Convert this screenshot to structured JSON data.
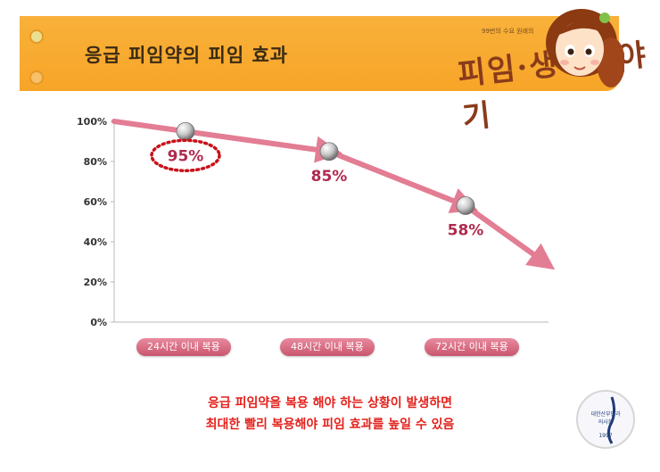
{
  "header": {
    "title": "응급 피임약의 피임 효과",
    "brand": "피임·생리이야기",
    "brand_small": "99번의 수요 원래의"
  },
  "colors": {
    "banner": "#f7a528",
    "arrow": "#e07089",
    "label": "#b0294f",
    "note": "#e4211c"
  },
  "chart_data": {
    "type": "line",
    "categories": [
      "24시간 이내 복용",
      "48시간 이내 복용",
      "72시간 이내 복용"
    ],
    "series": [
      {
        "values": [
          95,
          85,
          58
        ],
        "data_labels": [
          "95%",
          "85%",
          "58%"
        ]
      }
    ],
    "ylim": [
      0,
      100
    ],
    "yticks": [
      "0%",
      "20%",
      "40%",
      "60%",
      "80%",
      "100%"
    ],
    "highlight": "95%",
    "grid": false
  },
  "notes": {
    "line1": "응급 피임약을 복용 해야 하는 상황이 발생하면",
    "line2": "최대한 빨리 복용해야 피임 효과를 높일 수 있음"
  },
  "logo": {
    "line1": "대한산부인과",
    "line2": "의사회",
    "year": "1997"
  }
}
